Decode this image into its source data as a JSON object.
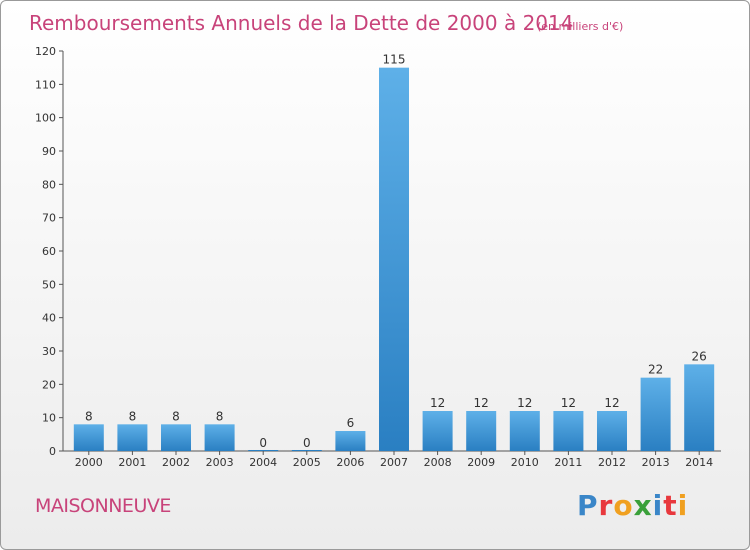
{
  "colors": {
    "title": "#c8437a",
    "bar_top": "#5eb0e8",
    "bar_bottom": "#2a7fc2"
  },
  "chart_data": {
    "type": "bar",
    "title": "Remboursements Annuels de la Dette de 2000 à 2014",
    "subtitle": "(en milliers d'€)",
    "xlabel": "",
    "ylabel": "",
    "ylim": [
      0,
      120
    ],
    "yticks": [
      0,
      10,
      20,
      30,
      40,
      50,
      60,
      70,
      80,
      90,
      100,
      110,
      120
    ],
    "grid": false,
    "categories": [
      "2000",
      "2001",
      "2002",
      "2003",
      "2004",
      "2005",
      "2006",
      "2007",
      "2008",
      "2009",
      "2010",
      "2011",
      "2012",
      "2013",
      "2014"
    ],
    "values": [
      8,
      8,
      8,
      8,
      0,
      0,
      6,
      115,
      12,
      12,
      12,
      12,
      12,
      22,
      26
    ]
  },
  "footer": {
    "commune": "MAISONNEUVE",
    "logo_letters": [
      "P",
      "r",
      "o",
      "x",
      "i",
      "t",
      "i"
    ]
  },
  "logo_colors": [
    "#3a86c8",
    "#e8383d",
    "#f0a020",
    "#3aa03a",
    "#3a86c8",
    "#e8383d",
    "#f0a020"
  ]
}
